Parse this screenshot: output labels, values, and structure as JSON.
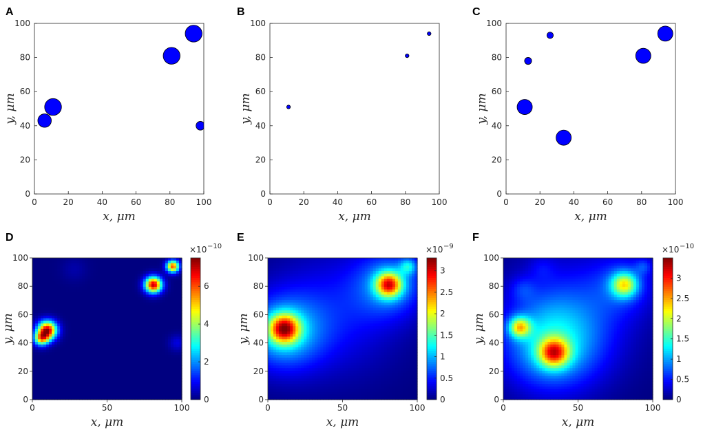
{
  "chart_data": [
    {
      "panel": "A",
      "type": "scatter",
      "xlabel": "x, μm",
      "ylabel": "y, μm",
      "xlim": [
        0,
        100
      ],
      "ylim": [
        0,
        100
      ],
      "xticks": [
        0,
        20,
        40,
        60,
        80,
        100
      ],
      "yticks": [
        0,
        20,
        40,
        60,
        80,
        100
      ],
      "marker_color": "#0000ff",
      "points": [
        {
          "x": 6,
          "y": 43,
          "size": 4
        },
        {
          "x": 11,
          "y": 51,
          "size": 5
        },
        {
          "x": 81,
          "y": 81,
          "size": 5
        },
        {
          "x": 94,
          "y": 94,
          "size": 5
        },
        {
          "x": 98,
          "y": 40,
          "size": 2.6
        }
      ]
    },
    {
      "panel": "B",
      "type": "scatter",
      "xlabel": "x, μm",
      "ylabel": "y, μm",
      "xlim": [
        0,
        100
      ],
      "ylim": [
        0,
        100
      ],
      "xticks": [
        0,
        20,
        40,
        60,
        80,
        100
      ],
      "yticks": [
        0,
        20,
        40,
        60,
        80,
        100
      ],
      "marker_color": "#0000ff",
      "points": [
        {
          "x": 11,
          "y": 51,
          "size": 1.1
        },
        {
          "x": 81,
          "y": 81,
          "size": 1.1
        },
        {
          "x": 94,
          "y": 94,
          "size": 1.1
        }
      ]
    },
    {
      "panel": "C",
      "type": "scatter",
      "xlabel": "x, μm",
      "ylabel": "y, μm",
      "xlim": [
        0,
        100
      ],
      "ylim": [
        0,
        100
      ],
      "xticks": [
        0,
        20,
        40,
        60,
        80,
        100
      ],
      "yticks": [
        0,
        20,
        40,
        60,
        80,
        100
      ],
      "marker_color": "#0000ff",
      "points": [
        {
          "x": 11,
          "y": 51,
          "size": 4.5
        },
        {
          "x": 13,
          "y": 78,
          "size": 2.1
        },
        {
          "x": 26,
          "y": 93,
          "size": 1.9
        },
        {
          "x": 34,
          "y": 33,
          "size": 4.5
        },
        {
          "x": 81,
          "y": 81,
          "size": 4.5
        },
        {
          "x": 94,
          "y": 94,
          "size": 4.5
        }
      ]
    },
    {
      "panel": "D",
      "type": "heatmap",
      "xlabel": "x, μm",
      "ylabel": "y, μm",
      "xlim": [
        0,
        100
      ],
      "ylim": [
        0,
        100
      ],
      "xticks": [
        0,
        50,
        100
      ],
      "yticks": [
        0,
        20,
        40,
        60,
        80,
        100
      ],
      "colorbar": {
        "min": 0,
        "max": 7.5,
        "ticks": [
          "0",
          "2",
          "4",
          "6"
        ],
        "tick_values": [
          0,
          2,
          4,
          6
        ],
        "exponent_label": "×10",
        "exponent_power": "−10"
      },
      "peaks": [
        {
          "x": 10,
          "y": 49,
          "amp": 7.0,
          "sigma": 4.5
        },
        {
          "x": 6,
          "y": 43,
          "amp": 4.5,
          "sigma": 3.5
        },
        {
          "x": 81,
          "y": 81,
          "amp": 7.0,
          "sigma": 4.0
        },
        {
          "x": 94,
          "y": 94,
          "amp": 6.0,
          "sigma": 3.0
        },
        {
          "x": 97,
          "y": 40,
          "amp": 0.7,
          "sigma": 4.0
        },
        {
          "x": 28,
          "y": 92,
          "amp": 0.3,
          "sigma": 6.0
        }
      ]
    },
    {
      "panel": "E",
      "type": "heatmap",
      "xlabel": "x, μm",
      "ylabel": "y, μm",
      "xlim": [
        0,
        100
      ],
      "ylim": [
        0,
        100
      ],
      "xticks": [
        0,
        50,
        100
      ],
      "yticks": [
        0,
        20,
        40,
        60,
        80,
        100
      ],
      "colorbar": {
        "min": 0,
        "max": 3.3,
        "ticks": [
          "0",
          "0.5",
          "1",
          "1.5",
          "2",
          "2.5",
          "3"
        ],
        "tick_values": [
          0,
          0.5,
          1,
          1.5,
          2,
          2.5,
          3
        ],
        "exponent_label": "×10",
        "exponent_power": "−9"
      },
      "peaks": [
        {
          "x": 11,
          "y": 50,
          "amp": 2.2,
          "sigma": 7
        },
        {
          "x": 10,
          "y": 47,
          "amp": 1.0,
          "sigma": 18
        },
        {
          "x": 81,
          "y": 81,
          "amp": 2.1,
          "sigma": 6
        },
        {
          "x": 82,
          "y": 82,
          "amp": 0.8,
          "sigma": 16
        },
        {
          "x": 94,
          "y": 94,
          "amp": 0.8,
          "sigma": 4
        },
        {
          "x": 45,
          "y": 62,
          "amp": 0.45,
          "sigma": 30
        }
      ]
    },
    {
      "panel": "F",
      "type": "heatmap",
      "xlabel": "x, μm",
      "ylabel": "y, μm",
      "xlim": [
        0,
        100
      ],
      "ylim": [
        0,
        100
      ],
      "xticks": [
        0,
        50,
        100
      ],
      "yticks": [
        0,
        20,
        40,
        60,
        80,
        100
      ],
      "colorbar": {
        "min": 0,
        "max": 3.5,
        "ticks": [
          "0",
          "0.5",
          "1",
          "1.5",
          "2",
          "2.5",
          "3"
        ],
        "tick_values": [
          0,
          0.5,
          1,
          1.5,
          2,
          2.5,
          3
        ],
        "exponent_label": "×10",
        "exponent_power": "−10"
      },
      "peaks": [
        {
          "x": 34,
          "y": 33,
          "amp": 2.0,
          "sigma": 7
        },
        {
          "x": 32,
          "y": 38,
          "amp": 1.0,
          "sigma": 22
        },
        {
          "x": 11,
          "y": 51,
          "amp": 1.7,
          "sigma": 5
        },
        {
          "x": 81,
          "y": 81,
          "amp": 1.6,
          "sigma": 6
        },
        {
          "x": 81,
          "y": 82,
          "amp": 0.5,
          "sigma": 15
        },
        {
          "x": 94,
          "y": 94,
          "amp": 0.4,
          "sigma": 4
        },
        {
          "x": 13,
          "y": 78,
          "amp": 0.3,
          "sigma": 6
        },
        {
          "x": 26,
          "y": 93,
          "amp": 0.2,
          "sigma": 6
        },
        {
          "x": 45,
          "y": 60,
          "amp": 0.55,
          "sigma": 30
        }
      ]
    }
  ]
}
